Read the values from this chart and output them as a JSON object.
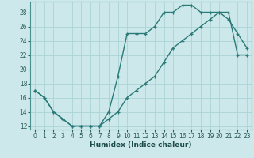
{
  "xlabel": "Humidex (Indice chaleur)",
  "bg_color": "#cce8ea",
  "grid_color": "#aad4d8",
  "line_color": "#2a7a78",
  "spine_color": "#4a9090",
  "xlim": [
    -0.5,
    23.5
  ],
  "ylim": [
    11.5,
    29.5
  ],
  "xticks": [
    0,
    1,
    2,
    3,
    4,
    5,
    6,
    7,
    8,
    9,
    10,
    11,
    12,
    13,
    14,
    15,
    16,
    17,
    18,
    19,
    20,
    21,
    22,
    23
  ],
  "yticks": [
    12,
    14,
    16,
    18,
    20,
    22,
    24,
    26,
    28
  ],
  "line1_x": [
    0,
    1,
    2,
    3,
    4,
    5,
    6,
    7,
    8,
    9,
    10,
    11,
    12,
    13,
    14,
    15,
    16,
    17,
    18,
    19,
    20,
    21,
    22,
    23
  ],
  "line1_y": [
    17,
    16,
    14,
    13,
    12,
    12,
    12,
    12,
    14,
    19,
    25,
    25,
    25,
    26,
    28,
    28,
    29,
    29,
    28,
    28,
    28,
    27,
    25,
    23
  ],
  "line2_x": [
    0,
    1,
    2,
    3,
    4,
    5,
    6,
    7,
    8,
    9,
    10,
    11,
    12,
    13,
    14,
    15,
    16,
    17,
    18,
    19,
    20,
    21,
    22,
    23
  ],
  "line2_y": [
    17,
    16,
    14,
    13,
    12,
    12,
    12,
    12,
    13,
    14,
    16,
    17,
    18,
    19,
    21,
    23,
    24,
    25,
    26,
    27,
    28,
    28,
    22,
    22
  ],
  "xlabel_fontsize": 6.5,
  "tick_fontsize": 5.5,
  "line_width": 1.0,
  "marker_size": 3.5
}
